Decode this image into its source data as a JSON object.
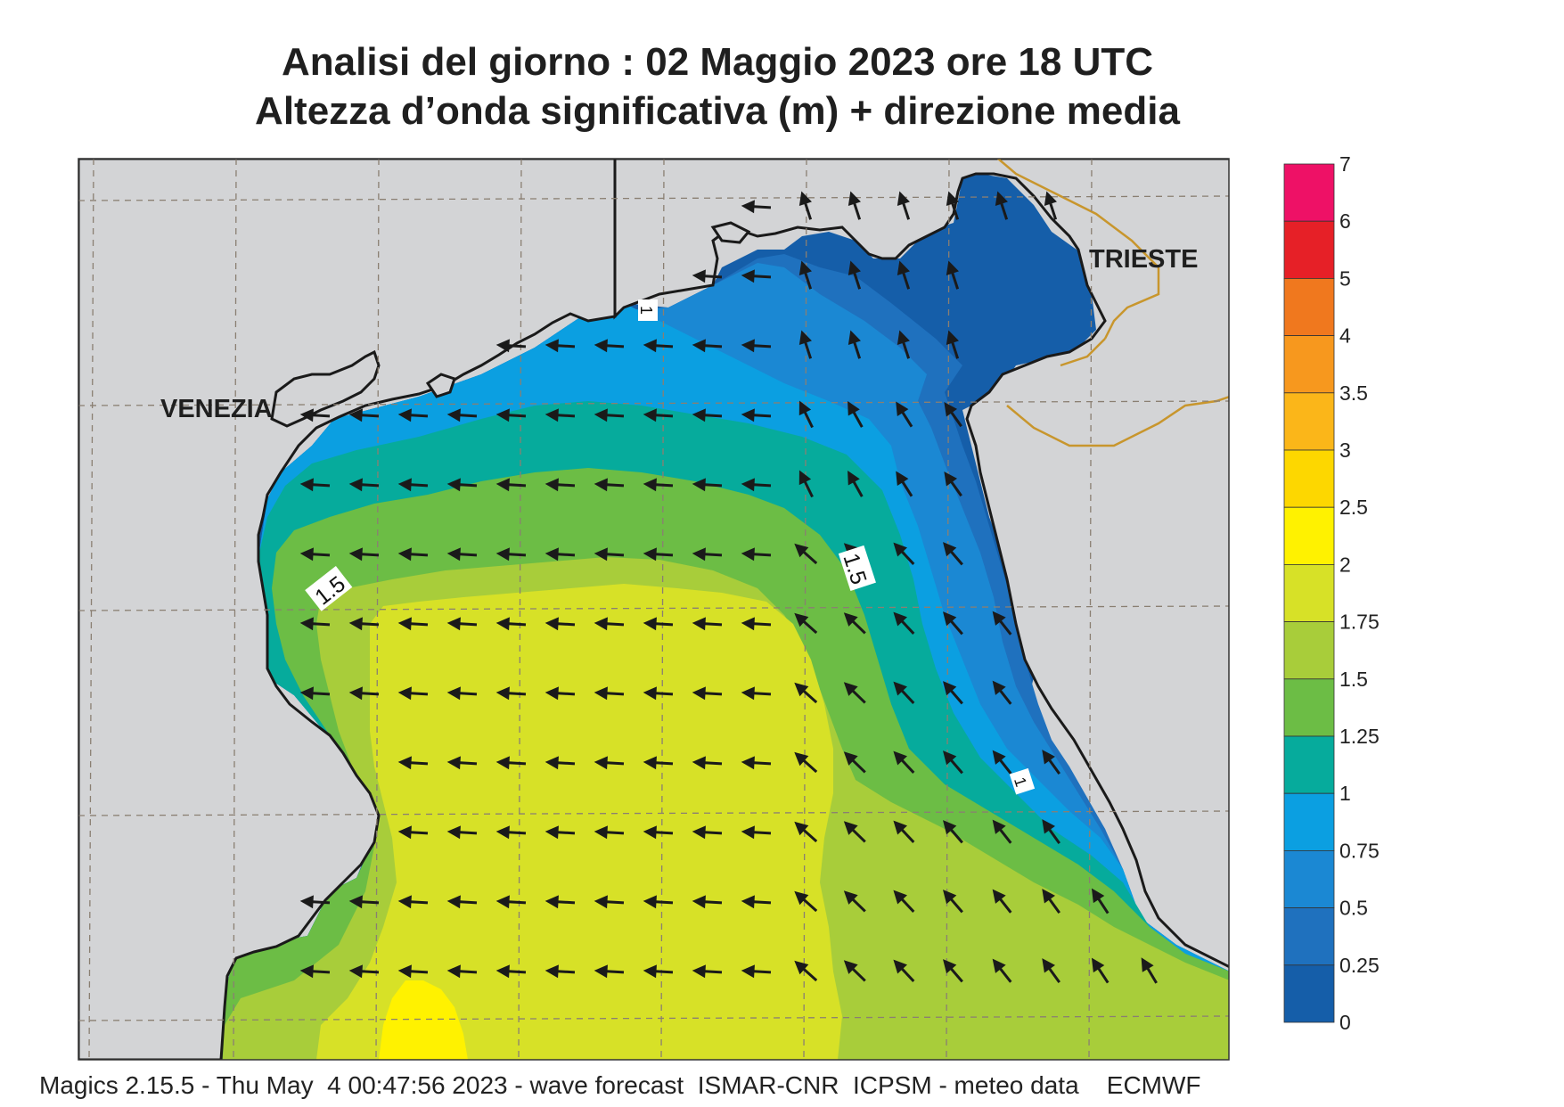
{
  "title": {
    "line1": "Analisi del giorno :  02   Maggio  2023   ore 18 UTC",
    "line2": "Altezza d’onda significativa (m) + direzione media"
  },
  "places": {
    "venezia": "VENEZIA",
    "trieste": "TRIESTE"
  },
  "contour_labels": {
    "left": "1.5",
    "right": "1.5",
    "top": "1",
    "bottom": "1"
  },
  "legend": {
    "levels": [
      "7",
      "6",
      "5",
      "4",
      "3.5",
      "3",
      "2.5",
      "2",
      "1.75",
      "1.5",
      "1.25",
      "1",
      "0.75",
      "0.5",
      "0.25",
      "0"
    ],
    "colors": [
      "#ee1166",
      "#e62027",
      "#f0781e",
      "#f7981e",
      "#fbb619",
      "#fdd700",
      "#fff200",
      "#d7e127",
      "#a8cd3a",
      "#6cbd45",
      "#06ab9c",
      "#0b9fe1",
      "#1b88d3",
      "#1f71be",
      "#155ea9"
    ]
  },
  "colors": {
    "land": "#d3d4d6",
    "sea_high": "#d7e127",
    "sea_peak": "#fff200",
    "coast": "#1a1a1a",
    "border": "#c8962d"
  },
  "footer": "Magics 2.15.5 - Thu May  4 00:47:56 2023 - wave forecast  ISMAR-CNR  ICPSM - meteo data    ECMWF"
}
